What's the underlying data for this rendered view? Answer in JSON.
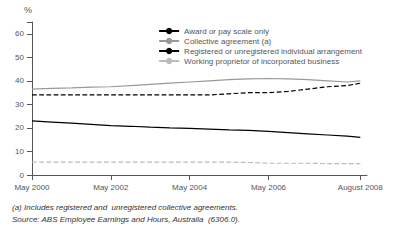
{
  "chart_data": {
    "type": "line",
    "ylabel": "%",
    "annotations": [
      "(a) Includes registered and  unregistered collective agreements.",
      "Source: ABS Employee Earnings and Hours, Australia  (6306.0)."
    ],
    "xlim": [
      0,
      8.5
    ],
    "xticks": [
      {
        "value": 0,
        "label": "May 2000"
      },
      {
        "value": 2,
        "label": "May 2002"
      },
      {
        "value": 4,
        "label": "May 2004"
      },
      {
        "value": 6,
        "label": "May 2006"
      },
      {
        "value": 8.33,
        "label": "August 2008"
      }
    ],
    "ylim": [
      0,
      65
    ],
    "yticks": [
      0,
      10,
      20,
      30,
      40,
      50,
      60
    ],
    "grid": false,
    "legend": "upper right",
    "x": [
      0,
      0.5,
      1,
      1.5,
      2,
      2.5,
      3,
      3.5,
      4,
      4.5,
      5,
      5.5,
      6,
      6.5,
      7,
      7.5,
      8,
      8.33
    ],
    "series": [
      {
        "name": "Award or pay scale only",
        "color": "#000000",
        "line_style": "solid",
        "values": [
          23,
          22.5,
          22,
          21.5,
          21,
          20.7,
          20.3,
          20,
          19.8,
          19.5,
          19.2,
          19,
          18.5,
          18,
          17.5,
          17,
          16.5,
          16
        ]
      },
      {
        "name": "Collective agreement (a)",
        "color": "#999999",
        "line_style": "solid",
        "values": [
          36.5,
          36.8,
          37,
          37.3,
          37.5,
          38,
          38.5,
          39,
          39.5,
          40,
          40.5,
          40.8,
          41,
          40.8,
          40.5,
          40,
          39.5,
          40
        ]
      },
      {
        "name": "Registered or unregistered individual arrangement",
        "color": "#000000",
        "line_style": "dashed",
        "values": [
          34,
          34,
          34,
          34,
          34,
          34,
          34,
          34,
          34,
          34,
          34.5,
          35,
          35,
          35.5,
          36.5,
          37.5,
          38,
          39
        ]
      },
      {
        "name": "Working proprietor of incorporated business",
        "color": "#bbbbbb",
        "line_style": "dashed",
        "values": [
          5.5,
          5.5,
          5.5,
          5.5,
          5.5,
          5.5,
          5.5,
          5.5,
          5.5,
          5.5,
          5.5,
          5.3,
          5,
          5,
          5,
          4.8,
          4.8,
          4.8
        ]
      }
    ]
  }
}
